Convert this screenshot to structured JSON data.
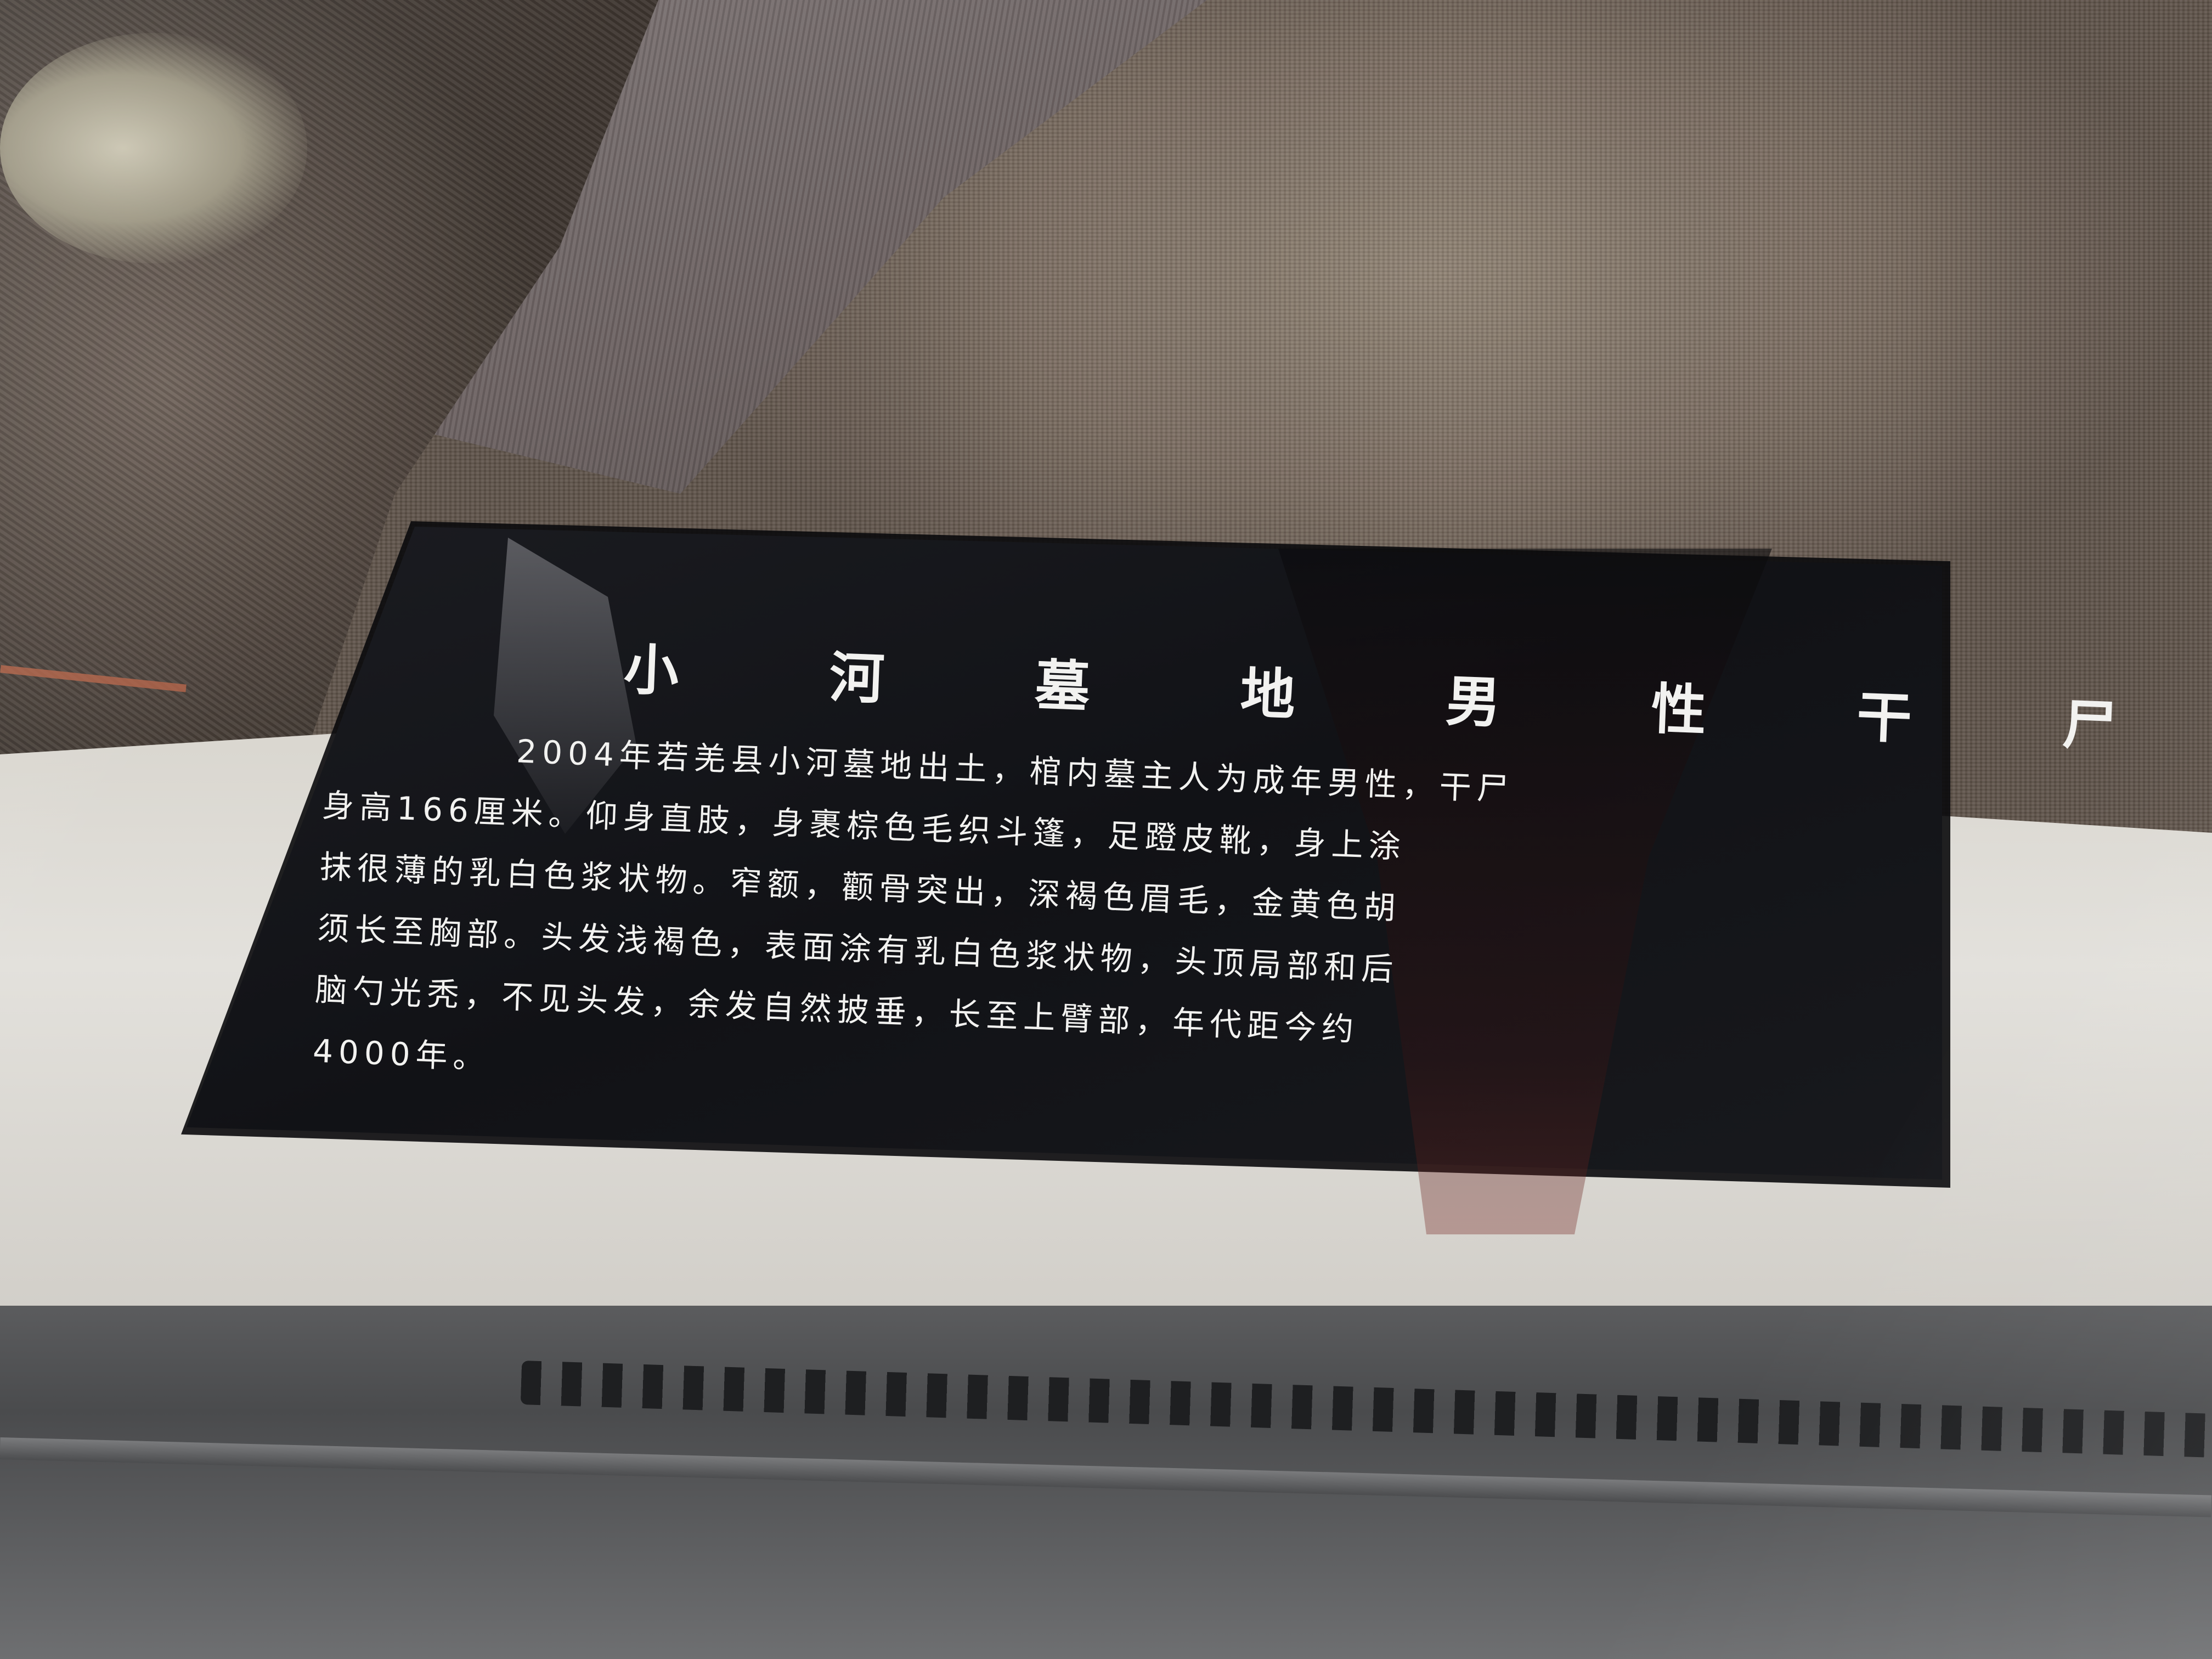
{
  "label": {
    "title": "小 河 墓 地 男 性 干 尸",
    "lines": [
      "2004年若羌县小河墓地出土，棺内墓主人为成年男性，干尸",
      "身高166厘米。仰身直肢，身裹棕色毛织斗篷，足蹬皮靴，身上涂",
      "抹很薄的乳白色浆状物。窄额，颧骨突出，深褐色眉毛，金黄色胡",
      "须长至胸部。头发浅褐色，表面涂有乳白色浆状物，头顶局部和后",
      "脑勺光秃，不见头发，余发自然披垂，长至上臂部，年代距今约",
      "4000年。"
    ]
  },
  "colors": {
    "plate": "#111216",
    "text": "#f2f2f0",
    "textile": "#7a6c60",
    "case_base": "#e3e1dc",
    "rail": "#4a4b4d"
  }
}
